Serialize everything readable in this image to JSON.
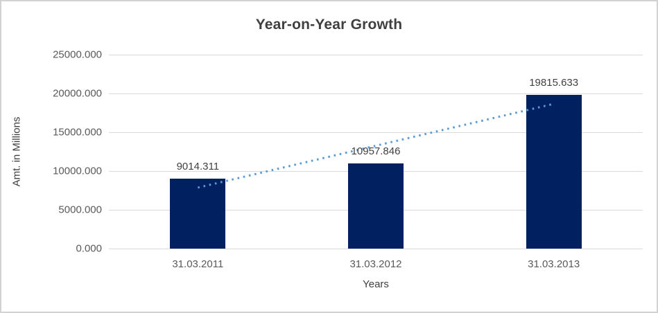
{
  "chart": {
    "title": "Year-on-Year Growth",
    "xlabel": "Years",
    "ylabel": "Amt. in Millions"
  },
  "chart_data": {
    "type": "bar",
    "title": "Year-on-Year Growth",
    "xlabel": "Years",
    "ylabel": "Amt. in Millions",
    "categories": [
      "31.03.2011",
      "31.03.2012",
      "31.03.2013"
    ],
    "values": [
      9014.311,
      10957.846,
      19815.633
    ],
    "data_labels": [
      "9014.311",
      "10957.846",
      "19815.633"
    ],
    "ylim": [
      0,
      25000
    ],
    "ytick_step": 5000,
    "ytick_labels": [
      "0.000",
      "5000.000",
      "10000.000",
      "15000.000",
      "20000.000",
      "25000.000"
    ],
    "grid": true,
    "legend": "none",
    "trendline": {
      "type": "linear",
      "style": "dotted",
      "start_value": 7862.1,
      "end_value": 18663.1
    }
  },
  "colors": {
    "background": "#FFFFFF",
    "chart_border": "#D2D2D2",
    "title_text": "#3F3F3F",
    "axis_text": "#595959",
    "data_label_text": "#404040",
    "gridline": "#D9D9D9",
    "bar": "#002060",
    "trendline": "#5B9BD5"
  }
}
